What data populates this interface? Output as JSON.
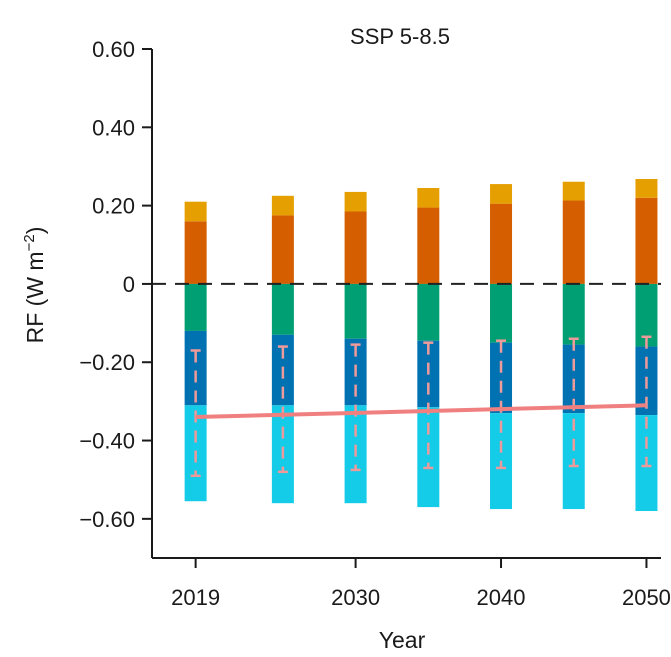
{
  "chart_data": {
    "type": "bar",
    "title": "SSP 5-8.5",
    "xlabel": "Year",
    "ylabel_main": "RF (W m",
    "ylabel_sup": "−2",
    "ylabel_close": ")",
    "ylim": [
      -0.7,
      0.6
    ],
    "xlim": [
      2016,
      2051
    ],
    "grid": false,
    "stacked": true,
    "yticks": [
      {
        "value": 0.6,
        "label": "0.60"
      },
      {
        "value": 0.4,
        "label": "0.40"
      },
      {
        "value": 0.2,
        "label": "0.20"
      },
      {
        "value": 0.0,
        "label": "0"
      },
      {
        "value": -0.2,
        "label": "−0.20"
      },
      {
        "value": -0.4,
        "label": "−0.40"
      },
      {
        "value": -0.6,
        "label": "−0.60"
      }
    ],
    "xticks": [
      {
        "value": 2019,
        "label": "2019"
      },
      {
        "value": 2030,
        "label": "2030"
      },
      {
        "value": 2040,
        "label": "2040"
      },
      {
        "value": 2050,
        "label": "2050"
      }
    ],
    "x": [
      2019,
      2025,
      2030,
      2035,
      2040,
      2045,
      2050
    ],
    "series": [
      {
        "color": "#d55e00",
        "values": [
          0.16,
          0.175,
          0.185,
          0.195,
          0.205,
          0.213,
          0.22
        ]
      },
      {
        "color": "#e69f00",
        "values": [
          0.05,
          0.05,
          0.05,
          0.05,
          0.05,
          0.048,
          0.048
        ]
      },
      {
        "color": "#009e73",
        "values": [
          -0.12,
          -0.13,
          -0.14,
          -0.145,
          -0.15,
          -0.155,
          -0.16
        ]
      },
      {
        "color": "#0072b2",
        "values": [
          -0.19,
          -0.18,
          -0.17,
          -0.17,
          -0.18,
          -0.175,
          -0.175
        ]
      },
      {
        "color": "#14cbe8",
        "values": [
          -0.245,
          -0.25,
          -0.25,
          -0.255,
          -0.245,
          -0.245,
          -0.245
        ]
      }
    ],
    "net_line": {
      "color": "#f08080",
      "x": [
        2019,
        2050
      ],
      "y": [
        -0.34,
        -0.31
      ]
    },
    "error_bars": {
      "color": "#ee9a9a",
      "low": [
        -0.49,
        -0.48,
        -0.475,
        -0.47,
        -0.47,
        -0.465,
        -0.465
      ],
      "high": [
        -0.17,
        -0.16,
        -0.155,
        -0.15,
        -0.145,
        -0.14,
        -0.135
      ]
    },
    "zero_line": {
      "style": "dashed",
      "color": "#222222"
    }
  }
}
